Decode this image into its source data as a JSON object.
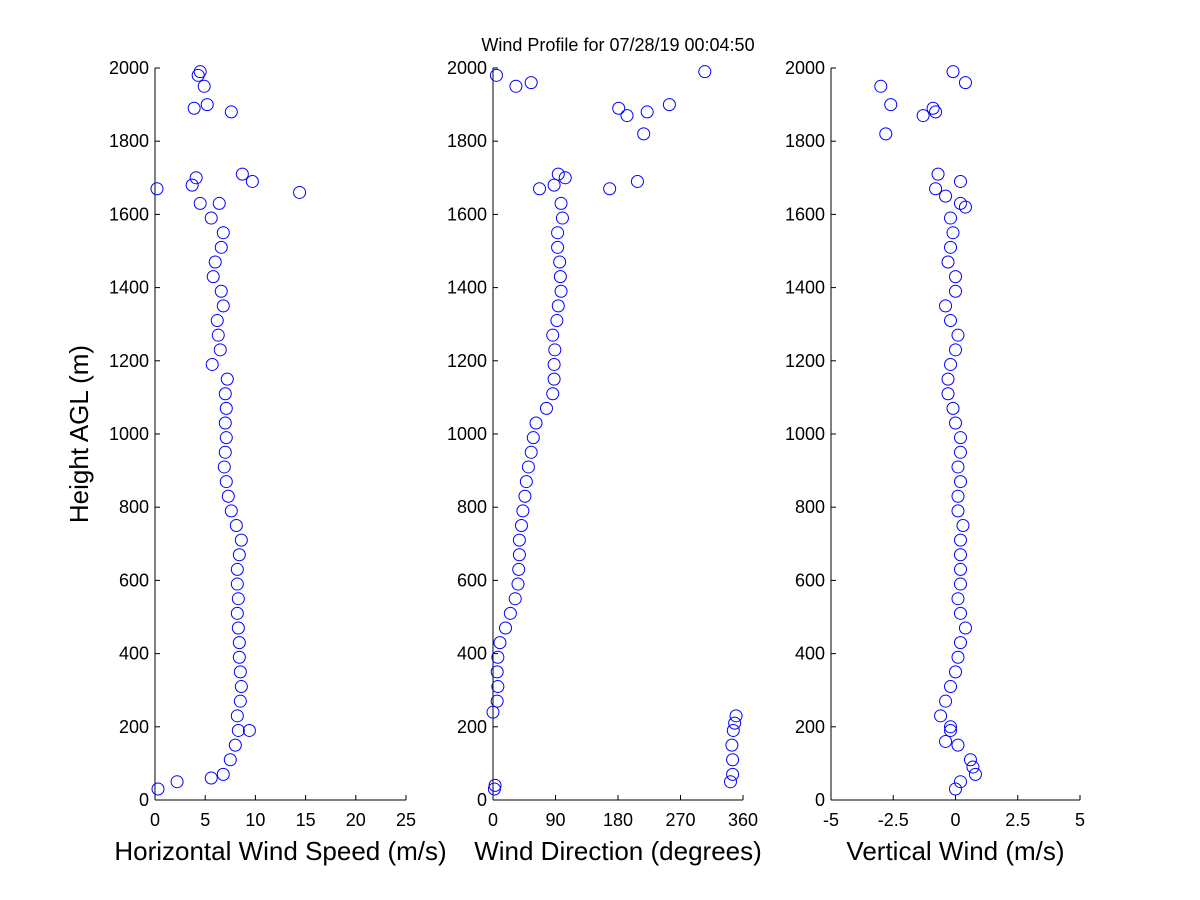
{
  "chart_data": [
    {
      "type": "scatter",
      "ylabel": "Height AGL (m)",
      "xlabel": "Horizontal Wind Speed (m/s)",
      "color": "#0000ff",
      "xlim": [
        0,
        25
      ],
      "xticks": [
        0,
        5,
        10,
        15,
        20,
        25
      ],
      "ylim": [
        0,
        2000
      ],
      "yticks": [
        0,
        200,
        400,
        600,
        800,
        1000,
        1200,
        1400,
        1600,
        1800,
        2000
      ],
      "x": [
        0.3,
        6.8,
        7.5,
        8.0,
        8.3,
        8.2,
        8.5,
        8.6,
        8.5,
        8.4,
        8.4,
        8.3,
        8.2,
        8.3,
        8.2,
        8.2,
        8.4,
        8.6,
        8.1,
        7.6,
        7.3,
        7.1,
        6.9,
        7.0,
        7.1,
        7.0,
        7.1,
        7.0,
        7.2,
        5.7,
        6.5,
        6.3,
        6.2,
        6.8,
        6.6,
        5.8,
        6.0,
        6.6,
        6.8,
        5.6,
        6.4,
        0.2,
        8.7,
        2.2,
        5.6,
        9.4,
        14.4,
        9.7,
        4.1,
        3.7,
        4.5,
        7.6,
        3.9,
        5.2,
        4.9,
        4.5,
        4.3
      ],
      "y": [
        30,
        70,
        110,
        150,
        190,
        230,
        270,
        310,
        350,
        390,
        430,
        470,
        510,
        550,
        590,
        630,
        670,
        710,
        750,
        790,
        830,
        870,
        910,
        950,
        990,
        1030,
        1070,
        1110,
        1150,
        1190,
        1230,
        1270,
        1310,
        1350,
        1390,
        1430,
        1470,
        1510,
        1550,
        1590,
        1630,
        1670,
        1710,
        50,
        60,
        190,
        1660,
        1690,
        1700,
        1680,
        1630,
        1880,
        1890,
        1900,
        1950,
        1990,
        1980
      ]
    },
    {
      "type": "scatter",
      "title": "Wind Profile for  07/28/19 00:04:50",
      "xlabel": "Wind Direction (degrees)",
      "color": "#0000ff",
      "xlim": [
        0,
        360
      ],
      "xticks": [
        0,
        90,
        180,
        270,
        360
      ],
      "ylim": [
        0,
        2000
      ],
      "yticks": [
        0,
        200,
        400,
        600,
        800,
        1000,
        1200,
        1400,
        1600,
        1800,
        2000
      ],
      "x": [
        2,
        345,
        345,
        344,
        346,
        350,
        6,
        7,
        6,
        7,
        10,
        18,
        25,
        32,
        36,
        37,
        38,
        38,
        41,
        43,
        46,
        48,
        51,
        55,
        58,
        62,
        77,
        86,
        88,
        88,
        89,
        86,
        92,
        94,
        98,
        97,
        96,
        93,
        93,
        100,
        98,
        67,
        94,
        0,
        3,
        342,
        348,
        168,
        208,
        104,
        88,
        5,
        33,
        55,
        305,
        181,
        193,
        222,
        217,
        254
      ],
      "y": [
        30,
        70,
        110,
        150,
        190,
        230,
        270,
        310,
        350,
        390,
        430,
        470,
        510,
        550,
        590,
        630,
        670,
        710,
        750,
        790,
        830,
        870,
        910,
        950,
        990,
        1030,
        1070,
        1110,
        1150,
        1190,
        1230,
        1270,
        1310,
        1350,
        1390,
        1430,
        1470,
        1510,
        1550,
        1590,
        1630,
        1670,
        1710,
        240,
        40,
        50,
        210,
        1670,
        1690,
        1700,
        1680,
        1980,
        1950,
        1960,
        1990,
        1890,
        1870,
        1880,
        1820,
        1900
      ]
    },
    {
      "type": "scatter",
      "xlabel": "Vertical Wind (m/s)",
      "color": "#0000ff",
      "xlim": [
        -5,
        5
      ],
      "xticks": [
        -5,
        -2.5,
        0,
        2.5,
        5
      ],
      "ylim": [
        0,
        2000
      ],
      "yticks": [
        0,
        200,
        400,
        600,
        800,
        1000,
        1200,
        1400,
        1600,
        1800,
        2000
      ],
      "x": [
        0.0,
        0.8,
        0.6,
        0.1,
        -0.2,
        -0.6,
        -0.4,
        -0.2,
        0.0,
        0.1,
        0.2,
        0.4,
        0.2,
        0.1,
        0.2,
        0.2,
        0.2,
        0.2,
        0.3,
        0.1,
        0.1,
        0.2,
        0.1,
        0.2,
        0.2,
        0.0,
        -0.1,
        -0.3,
        -0.3,
        -0.2,
        0.0,
        0.1,
        -0.2,
        -0.4,
        0.0,
        0.0,
        -0.3,
        -0.2,
        -0.1,
        -0.2,
        0.2,
        -0.8,
        -0.7,
        0.2,
        0.7,
        -0.4,
        -0.2,
        0.4,
        0.2,
        -0.4,
        -3.0,
        -2.6,
        -2.8,
        -0.9,
        -1.3,
        -0.8,
        -0.1,
        0.4
      ],
      "y": [
        30,
        70,
        110,
        150,
        190,
        230,
        270,
        310,
        350,
        390,
        430,
        470,
        510,
        550,
        590,
        630,
        670,
        710,
        750,
        790,
        830,
        870,
        910,
        950,
        990,
        1030,
        1070,
        1110,
        1150,
        1190,
        1230,
        1270,
        1310,
        1350,
        1390,
        1430,
        1470,
        1510,
        1550,
        1590,
        1630,
        1670,
        1710,
        50,
        90,
        160,
        200,
        1620,
        1690,
        1650,
        1950,
        1900,
        1820,
        1890,
        1870,
        1880,
        1990,
        1960
      ]
    }
  ]
}
